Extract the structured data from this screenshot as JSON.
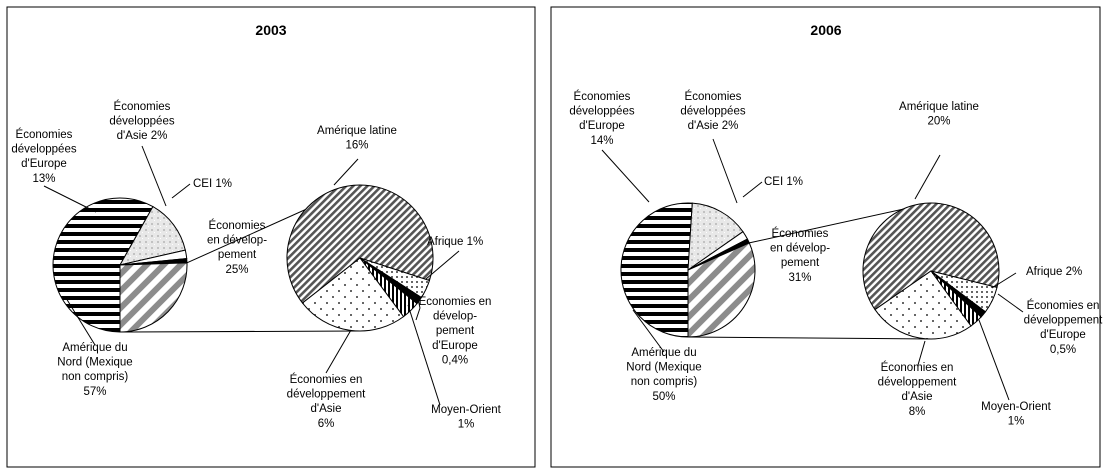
{
  "chart_data": [
    {
      "type": "pie",
      "title": "2003",
      "main_pie": [
        {
          "name": "Amérique du Nord (Mexique non compris)",
          "label_lines": [
            "Amérique du",
            "Nord (Mexique",
            "non compris)",
            "57%"
          ],
          "value": 57,
          "pattern": "hlines"
        },
        {
          "name": "Économies développées d'Europe",
          "label_lines": [
            "Économies",
            "développées",
            "d'Europe",
            "13%"
          ],
          "value": 13,
          "pattern": "lightdots"
        },
        {
          "name": "Économies développées d'Asie",
          "label_lines": [
            "Économies",
            "développées",
            "d'Asie 2%"
          ],
          "value": 2,
          "pattern": "white"
        },
        {
          "name": "CEI",
          "label_lines": [
            "CEI 1%"
          ],
          "value": 1,
          "pattern": "black"
        },
        {
          "name": "Économies en développement",
          "label_lines": [
            "Économies",
            "en dévelop-",
            "pement",
            "25%"
          ],
          "value": 25,
          "pattern": "wdiag"
        }
      ],
      "breakdown_pie": [
        {
          "name": "Amérique latine",
          "label_lines": [
            "Amérique latine",
            "16%"
          ],
          "value": 16,
          "pattern": "ddiag"
        },
        {
          "name": "Afrique",
          "label_lines": [
            "Afrique 1%"
          ],
          "value": 1,
          "pattern": "dots"
        },
        {
          "name": "Économies en développement d'Europe",
          "label_lines": [
            "Économies en",
            "dévelop-",
            "pement",
            "d'Europe",
            "0,4%"
          ],
          "value": 0.4,
          "pattern": "black"
        },
        {
          "name": "Moyen-Orient",
          "label_lines": [
            "Moyen-Orient",
            "1%"
          ],
          "value": 1,
          "pattern": "vlines"
        },
        {
          "name": "Économies en développement d'Asie",
          "label_lines": [
            "Économies en",
            "développement",
            "d'Asie",
            "6%"
          ],
          "value": 6,
          "pattern": "sdots"
        }
      ]
    },
    {
      "type": "pie",
      "title": "2006",
      "main_pie": [
        {
          "name": "Amérique du Nord (Mexique non compris)",
          "label_lines": [
            "Amérique du",
            "Nord (Mexique",
            "non compris)",
            "50%"
          ],
          "value": 50,
          "pattern": "hlines"
        },
        {
          "name": "Économies développées d'Europe",
          "label_lines": [
            "Économies",
            "développées",
            "d'Europe",
            "14%"
          ],
          "value": 14,
          "pattern": "lightdots"
        },
        {
          "name": "Économies développées d'Asie",
          "label_lines": [
            "Économies",
            "développées",
            "d'Asie 2%"
          ],
          "value": 2,
          "pattern": "white"
        },
        {
          "name": "CEI",
          "label_lines": [
            "CEI 1%"
          ],
          "value": 1,
          "pattern": "black"
        },
        {
          "name": "Économies en développement",
          "label_lines": [
            "Économies",
            "en dévelop-",
            "pement",
            "31%"
          ],
          "value": 31,
          "pattern": "wdiag"
        }
      ],
      "breakdown_pie": [
        {
          "name": "Amérique latine",
          "label_lines": [
            "Amérique latine",
            "20%"
          ],
          "value": 20,
          "pattern": "ddiag"
        },
        {
          "name": "Afrique",
          "label_lines": [
            "Afrique 2%"
          ],
          "value": 2,
          "pattern": "dots"
        },
        {
          "name": "Économies en développement d'Europe",
          "label_lines": [
            "Économies en",
            "développement",
            "d'Europe",
            "0,5%"
          ],
          "value": 0.5,
          "pattern": "black"
        },
        {
          "name": "Moyen-Orient",
          "label_lines": [
            "Moyen-Orient",
            "1%"
          ],
          "value": 1,
          "pattern": "vlines"
        },
        {
          "name": "Économies en développement d'Asie",
          "label_lines": [
            "Économies en",
            "développement",
            "d'Asie",
            "8%"
          ],
          "value": 8,
          "pattern": "sdots"
        }
      ]
    }
  ]
}
